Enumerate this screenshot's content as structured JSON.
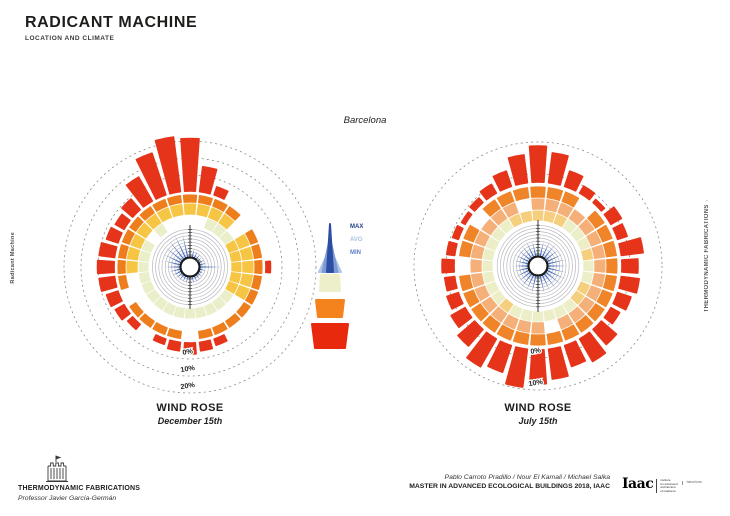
{
  "page": {
    "title": "RADICANT MACHINE",
    "subtitle": "LOCATION AND CLIMATE",
    "location_label": "Barcelona"
  },
  "side_labels": {
    "left": "Radicant Machine",
    "right": "THERMODYNAMIC FABRICATIONS",
    "right_mark": "▪"
  },
  "legend": {
    "items": [
      {
        "label": "MAX",
        "color": "#23408e"
      },
      {
        "label": "AVG",
        "color": "#a9c1e6"
      },
      {
        "label": "MIN",
        "color": "#5e7fc4"
      }
    ],
    "cone_colors": {
      "blue_light": "#afc6e8",
      "blue_mid": "#7d9ad2",
      "blue_dark": "#2b4ea2",
      "pale": "#ecefc9",
      "orange": "#f5831d",
      "red": "#e8290e"
    }
  },
  "footer": {
    "left": {
      "org": "THERMODYNAMIC FABRICATIONS",
      "professor": "Professor Javier García-Germán"
    },
    "right": {
      "authors": "Pablo Carroto Pradillo / Nour El Kamali / Michael Salka",
      "program": "MASTER IN ADVANCED ECOLOGICAL BUILDINGS 2018, IAAC"
    },
    "iaac": {
      "wordmark": "Iaac",
      "lines": [
        "institute",
        "for advanced",
        "architecture",
        "of catalonia"
      ],
      "city": "barcelona"
    }
  },
  "chart_data": [
    {
      "type": "wind_rose",
      "title": "WIND ROSE",
      "subtitle": "December 15th",
      "location": "Barcelona",
      "frequency_ring_labels": [
        "0%",
        "10%",
        "20%"
      ],
      "frequency_axis_max_pct": 20,
      "center_label": "m/s",
      "bars": {
        "name": "wind direction frequency (%)",
        "sectors": 32,
        "start": "N",
        "clockwise": true,
        "color": "#e5341a",
        "values_pct": [
          10.5,
          5,
          1.7,
          0,
          0,
          0,
          0,
          0,
          0.9,
          0,
          0,
          0,
          0,
          0,
          1.3,
          1.7,
          2.2,
          1.7,
          1.1,
          0,
          1.3,
          2,
          2.4,
          3.1,
          3.3,
          3.1,
          2.4,
          2,
          2.8,
          5.5,
          8.8,
          11
        ]
      },
      "speed_spikes": {
        "name": "wind speed by direction (relative, m/s scale unlabeled)",
        "sectors": 28,
        "colors": {
          "max": "#2b4ea2",
          "avg": "#7d9ad2",
          "min": "#afc6e8"
        },
        "max": [
          0.85,
          0.3,
          0.25,
          0.2,
          0.15,
          0.2,
          0.25,
          0.8,
          0.2,
          0.15,
          0.18,
          0.2,
          0.22,
          0.25,
          0.3,
          0.25,
          0.22,
          0.25,
          0.3,
          0.35,
          0.4,
          0.55,
          0.6,
          0.7,
          0.8,
          0.9,
          0.95,
          0.9
        ],
        "avg": [
          0.55,
          0.2,
          0.15,
          0.12,
          0.1,
          0.12,
          0.15,
          0.5,
          0.12,
          0.08,
          0.1,
          0.12,
          0.14,
          0.15,
          0.18,
          0.15,
          0.13,
          0.15,
          0.2,
          0.22,
          0.25,
          0.35,
          0.4,
          0.45,
          0.55,
          0.6,
          0.65,
          0.6
        ],
        "min": [
          0.3,
          0.1,
          0.08,
          0.06,
          0.05,
          0.06,
          0.08,
          0.25,
          0.06,
          0.04,
          0.05,
          0.06,
          0.07,
          0.08,
          0.09,
          0.08,
          0.06,
          0.08,
          0.1,
          0.1,
          0.12,
          0.18,
          0.2,
          0.22,
          0.28,
          0.3,
          0.35,
          0.3
        ]
      },
      "block_rings": [
        {
          "name": "outer-orange",
          "band": 2,
          "color": "#ee7d1c",
          "presence": [
            1,
            1,
            1,
            1,
            0,
            1,
            1,
            1,
            1,
            1,
            1,
            1,
            1,
            1,
            0,
            1,
            1,
            1,
            1,
            0,
            1,
            1,
            1,
            1,
            1,
            1,
            1,
            1
          ]
        },
        {
          "name": "middle-yellow",
          "band": 1,
          "color": "#f6c544",
          "presence": [
            1,
            1,
            1,
            1,
            0,
            1,
            1,
            1,
            1,
            1,
            0,
            0,
            0,
            0,
            0,
            0,
            0,
            0,
            0,
            0,
            0,
            1,
            1,
            1,
            1,
            1,
            1,
            1
          ]
        },
        {
          "name": "inner-pale",
          "band": 0,
          "color": "#eaeec9",
          "presence": [
            0,
            0,
            1,
            1,
            1,
            1,
            0,
            0,
            0,
            0,
            1,
            1,
            1,
            1,
            1,
            1,
            1,
            1,
            1,
            1,
            1,
            1,
            1,
            1,
            0,
            1,
            0,
            0
          ]
        },
        {
          "name": "inner-yellow-accent",
          "band": 0,
          "color": "#f6c544",
          "presence": [
            0,
            0,
            0,
            0,
            0,
            1,
            1,
            1,
            1,
            1,
            0,
            0,
            0,
            0,
            0,
            0,
            0,
            0,
            0,
            0,
            0,
            0,
            0,
            0,
            0,
            0,
            0,
            0
          ]
        }
      ]
    },
    {
      "type": "wind_rose",
      "title": "WIND ROSE",
      "subtitle": "July 15th",
      "location": "Barcelona",
      "frequency_ring_labels": [
        "0%",
        "10%"
      ],
      "frequency_axis_max_pct": 10,
      "center_label": "m/s",
      "bars": {
        "name": "wind direction frequency (%)",
        "sectors": 32,
        "start": "N",
        "clockwise": true,
        "color": "#e5341a",
        "values_pct": [
          9,
          7.5,
          4,
          2,
          1,
          3,
          2.5,
          5.5,
          4,
          4.5,
          3.5,
          2.5,
          5,
          6.5,
          5.5,
          7.5,
          8.5,
          9.5,
          7,
          8,
          5.5,
          4,
          3,
          2.5,
          3,
          2,
          1.5,
          1,
          1.5,
          2.5,
          4,
          7
        ]
      },
      "speed_spikes": {
        "name": "wind speed by direction (relative, m/s scale unlabeled)",
        "sectors": 28,
        "colors": {
          "max": "#2b4ea2",
          "avg": "#7d9ad2",
          "min": "#afc6e8"
        },
        "max": [
          0.55,
          0.5,
          0.55,
          0.55,
          0.5,
          0.55,
          0.6,
          0.6,
          0.6,
          0.65,
          0.65,
          0.6,
          0.55,
          0.6,
          0.6,
          0.6,
          0.55,
          0.55,
          0.5,
          0.45,
          0.45,
          0.45,
          0.45,
          0.5,
          0.5,
          0.5,
          0.55,
          0.5
        ],
        "avg": [
          0.35,
          0.32,
          0.35,
          0.35,
          0.32,
          0.35,
          0.4,
          0.4,
          0.4,
          0.42,
          0.42,
          0.4,
          0.35,
          0.4,
          0.4,
          0.4,
          0.35,
          0.35,
          0.32,
          0.3,
          0.3,
          0.3,
          0.3,
          0.32,
          0.32,
          0.32,
          0.35,
          0.32
        ],
        "min": [
          0.16,
          0.15,
          0.16,
          0.16,
          0.15,
          0.16,
          0.18,
          0.18,
          0.18,
          0.2,
          0.2,
          0.18,
          0.16,
          0.18,
          0.18,
          0.18,
          0.16,
          0.16,
          0.15,
          0.14,
          0.14,
          0.14,
          0.14,
          0.15,
          0.15,
          0.15,
          0.16,
          0.15
        ]
      },
      "block_rings": [
        {
          "name": "outer-orange",
          "band": 2,
          "color": "#f08428",
          "presence": [
            1,
            1,
            1,
            0,
            1,
            1,
            1,
            1,
            1,
            1,
            1,
            1,
            1,
            1,
            1,
            1,
            1,
            1,
            1,
            1,
            1,
            0,
            1,
            1,
            0,
            1,
            1,
            1
          ]
        },
        {
          "name": "middle-tan",
          "band": 1,
          "color": "#f4b078",
          "presence": [
            1,
            1,
            1,
            1,
            1,
            1,
            1,
            1,
            1,
            1,
            1,
            1,
            1,
            0,
            1,
            1,
            1,
            1,
            1,
            1,
            1,
            1,
            1,
            1,
            1,
            1,
            1,
            0
          ]
        },
        {
          "name": "inner-pale",
          "band": 0,
          "color": "#ebeec6",
          "presence": [
            0,
            0,
            0,
            1,
            1,
            1,
            0,
            1,
            1,
            0,
            0,
            1,
            1,
            1,
            1,
            1,
            1,
            0,
            1,
            1,
            1,
            1,
            1,
            1,
            1,
            1,
            0,
            0
          ]
        },
        {
          "name": "inner-yellow-accent",
          "band": 0,
          "color": "#f6cf7e",
          "presence": [
            1,
            1,
            1,
            0,
            0,
            0,
            1,
            0,
            0,
            1,
            1,
            0,
            0,
            0,
            0,
            0,
            0,
            1,
            0,
            0,
            0,
            0,
            0,
            0,
            0,
            0,
            1,
            1
          ]
        }
      ]
    }
  ]
}
